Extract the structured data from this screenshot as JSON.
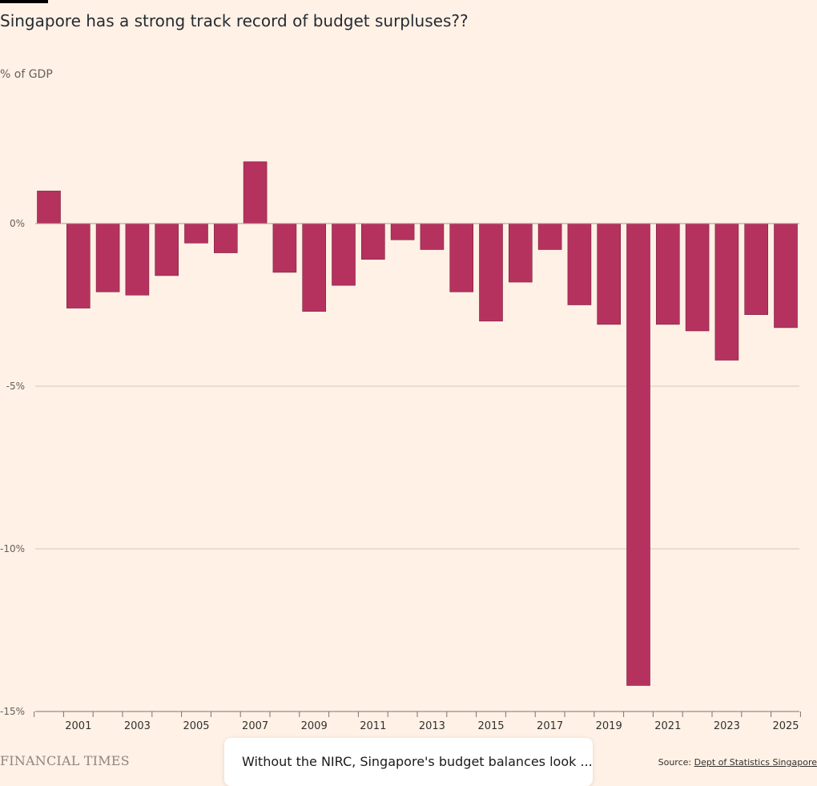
{
  "header": {
    "title": "Singapore has a strong track record of budget surpluses??",
    "unit_label": "% of GDP"
  },
  "footer": {
    "brand": "FINANCIAL TIMES",
    "source_prefix": "Source: ",
    "source_link": "Dept of Statistics Singapore"
  },
  "card": {
    "text": "Without the NIRC, Singapore's budget balances look ..."
  },
  "colors": {
    "bar": "#b5325f",
    "bar_stroke": "#7a1f3e",
    "grid": "#d9c8bc",
    "zero_line": "#a69a91",
    "axis": "#7a7471",
    "background": "#fff1e5"
  },
  "chart_data": {
    "type": "bar",
    "title": "Singapore has a strong track record of budget surpluses??",
    "ylabel": "% of GDP",
    "xlabel": "",
    "categories": [
      "2000",
      "2001",
      "2002",
      "2003",
      "2004",
      "2005",
      "2006",
      "2007",
      "2008",
      "2009",
      "2010",
      "2011",
      "2012",
      "2013",
      "2014",
      "2015",
      "2016",
      "2017",
      "2018",
      "2019",
      "2020",
      "2021",
      "2022",
      "2023",
      "2024",
      "2025"
    ],
    "x_tick_labels": [
      "2001",
      "2003",
      "2005",
      "2007",
      "2009",
      "2011",
      "2013",
      "2015",
      "2017",
      "2019",
      "2021",
      "2023",
      "2025"
    ],
    "values": [
      1.0,
      -2.6,
      -2.1,
      -2.2,
      -1.6,
      -0.6,
      -0.9,
      1.9,
      -1.5,
      -2.7,
      -1.9,
      -1.1,
      -0.5,
      -0.8,
      -2.1,
      -3.0,
      -1.8,
      -0.8,
      -2.5,
      -3.1,
      -14.2,
      -3.1,
      -3.3,
      -4.2,
      -2.8,
      -3.2
    ],
    "y_ticks": [
      0,
      -5,
      -10,
      -15
    ],
    "y_tick_labels": [
      "0%",
      "-5%",
      "-10%",
      "-15%"
    ],
    "ylim": [
      -15,
      3.6
    ],
    "grid": true,
    "legend": "none"
  }
}
